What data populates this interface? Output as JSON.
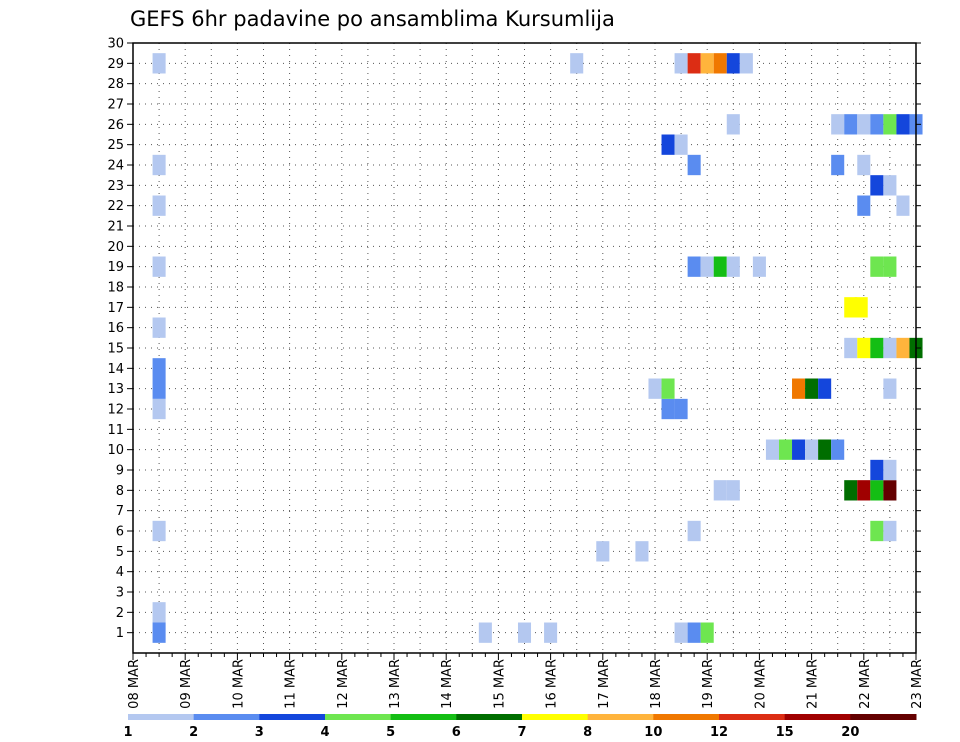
{
  "chart_data": {
    "type": "heatmap",
    "title": "GEFS 6hr padavine po ansamblima Kursumlija",
    "xlabel": "",
    "ylabel": "",
    "x_ticks": [
      "08 MAR",
      "09 MAR",
      "10 MAR",
      "11 MAR",
      "12 MAR",
      "13 MAR",
      "14 MAR",
      "15 MAR",
      "16 MAR",
      "17 MAR",
      "18 MAR",
      "19 MAR",
      "20 MAR",
      "21 MAR",
      "22 MAR",
      "23 MAR"
    ],
    "y_ticks": [
      "1",
      "2",
      "3",
      "4",
      "5",
      "6",
      "7",
      "8",
      "9",
      "10",
      "11",
      "12",
      "13",
      "14",
      "15",
      "16",
      "17",
      "18",
      "19",
      "20",
      "21",
      "22",
      "23",
      "24",
      "25",
      "26",
      "27",
      "28",
      "29",
      "30"
    ],
    "xlim_days": [
      0,
      15
    ],
    "ylim": [
      0,
      30
    ],
    "grid": true,
    "steps_per_day": 4,
    "legend": {
      "placement": "bottom",
      "labels": [
        "1",
        "2",
        "3",
        "4",
        "5",
        "6",
        "7",
        "8",
        "10",
        "12",
        "15",
        "20"
      ],
      "colors": [
        "#b4c8f0",
        "#5a8cf0",
        "#1446dc",
        "#6ee650",
        "#14be14",
        "#006e00",
        "#ffff00",
        "#ffb43c",
        "#f07800",
        "#dc2d14",
        "#a00000",
        "#640000"
      ]
    },
    "cells": [
      {
        "member": 1,
        "day": 0.5,
        "level": 1
      },
      {
        "member": 1,
        "day": 7.5,
        "level": 0
      },
      {
        "member": 1,
        "day": 8,
        "level": 0
      },
      {
        "member": 1,
        "day": 6.75,
        "level": -1
      },
      {
        "member": 1,
        "day": 10.5,
        "level": 0
      },
      {
        "member": 1,
        "day": 10.75,
        "level": 1
      },
      {
        "member": 1,
        "day": 11,
        "level": 3
      },
      {
        "member": 2,
        "day": 0.5,
        "level": 0
      },
      {
        "member": 5,
        "day": 9,
        "level": 0
      },
      {
        "member": 5,
        "day": 9.75,
        "level": 0
      },
      {
        "member": 6,
        "day": 0.5,
        "level": 0
      },
      {
        "member": 6,
        "day": 10.75,
        "level": 0
      },
      {
        "member": 6,
        "day": 14.25,
        "level": 3
      },
      {
        "member": 6,
        "day": 14.5,
        "level": 0
      },
      {
        "member": 8,
        "day": 11.25,
        "level": 0
      },
      {
        "member": 8,
        "day": 11.5,
        "level": 0
      },
      {
        "member": 8,
        "day": 13.75,
        "level": 5
      },
      {
        "member": 8,
        "day": 14,
        "level": 10
      },
      {
        "member": 8,
        "day": 14.25,
        "level": 4
      },
      {
        "member": 8,
        "day": 14.5,
        "level": 11
      },
      {
        "member": 9,
        "day": 14.25,
        "level": 2
      },
      {
        "member": 9,
        "day": 14.5,
        "level": 0
      },
      {
        "member": 10,
        "day": 12.25,
        "level": 0
      },
      {
        "member": 10,
        "day": 12.5,
        "level": 3
      },
      {
        "member": 10,
        "day": 12.75,
        "level": 2
      },
      {
        "member": 10,
        "day": 13,
        "level": 0
      },
      {
        "member": 10,
        "day": 13.25,
        "level": 5
      },
      {
        "member": 10,
        "day": 13.5,
        "level": 1
      },
      {
        "member": 12,
        "day": 0.5,
        "level": 0
      },
      {
        "member": 12,
        "day": 10.25,
        "level": 1
      },
      {
        "member": 12,
        "day": 10.5,
        "level": 1
      },
      {
        "member": 13,
        "day": 0.5,
        "level": 1
      },
      {
        "member": 13,
        "day": 10,
        "level": 0
      },
      {
        "member": 13,
        "day": 10.25,
        "level": 3
      },
      {
        "member": 13,
        "day": 12.75,
        "level": 8
      },
      {
        "member": 13,
        "day": 13,
        "level": 5
      },
      {
        "member": 13,
        "day": 13.25,
        "level": 2
      },
      {
        "member": 13,
        "day": 14.5,
        "level": 0
      },
      {
        "member": 14,
        "day": 0.5,
        "level": 1
      },
      {
        "member": 15,
        "day": 13.75,
        "level": 0
      },
      {
        "member": 15,
        "day": 14,
        "level": 6
      },
      {
        "member": 15,
        "day": 14.25,
        "level": 4
      },
      {
        "member": 15,
        "day": 14.5,
        "level": 0
      },
      {
        "member": 15,
        "day": 14.75,
        "level": 7
      },
      {
        "member": 15,
        "day": 15,
        "level": 5
      },
      {
        "member": 16,
        "day": 0.5,
        "level": 0
      },
      {
        "member": 17,
        "day": 13.75,
        "level": 6
      },
      {
        "member": 17,
        "day": 13.95,
        "level": 6
      },
      {
        "member": 19,
        "day": 0.5,
        "level": 0
      },
      {
        "member": 19,
        "day": 10.75,
        "level": 1
      },
      {
        "member": 19,
        "day": 11,
        "level": 0
      },
      {
        "member": 19,
        "day": 11.25,
        "level": 4
      },
      {
        "member": 19,
        "day": 11.5,
        "level": 0
      },
      {
        "member": 19,
        "day": 12,
        "level": 0
      },
      {
        "member": 19,
        "day": 14.25,
        "level": 3
      },
      {
        "member": 19,
        "day": 14.5,
        "level": 3
      },
      {
        "member": 22,
        "day": 0.5,
        "level": 0
      },
      {
        "member": 22,
        "day": 14,
        "level": 1
      },
      {
        "member": 22,
        "day": 14.75,
        "level": 0
      },
      {
        "member": 23,
        "day": 14.25,
        "level": 2
      },
      {
        "member": 23,
        "day": 14.5,
        "level": 0
      },
      {
        "member": 24,
        "day": 0.5,
        "level": 0
      },
      {
        "member": 24,
        "day": 10.75,
        "level": 1
      },
      {
        "member": 24,
        "day": 13.5,
        "level": 1
      },
      {
        "member": 24,
        "day": 14,
        "level": 0
      },
      {
        "member": 25,
        "day": 10.25,
        "level": 2
      },
      {
        "member": 25,
        "day": 10.5,
        "level": 0
      },
      {
        "member": 26,
        "day": 11.5,
        "level": 0
      },
      {
        "member": 26,
        "day": 13.5,
        "level": 0
      },
      {
        "member": 26,
        "day": 13.75,
        "level": 1
      },
      {
        "member": 26,
        "day": 14,
        "level": 0
      },
      {
        "member": 26,
        "day": 14.25,
        "level": 1
      },
      {
        "member": 26,
        "day": 14.5,
        "level": 3
      },
      {
        "member": 26,
        "day": 14.75,
        "level": 2
      },
      {
        "member": 26,
        "day": 15,
        "level": 1
      },
      {
        "member": 29,
        "day": 0.5,
        "level": 0
      },
      {
        "member": 29,
        "day": 8.5,
        "level": 0
      },
      {
        "member": 29,
        "day": 10.5,
        "level": 0
      },
      {
        "member": 29,
        "day": 10.75,
        "level": 9
      },
      {
        "member": 29,
        "day": 11,
        "level": 7
      },
      {
        "member": 29,
        "day": 11.25,
        "level": 8
      },
      {
        "member": 29,
        "day": 11.5,
        "level": 2
      },
      {
        "member": 29,
        "day": 11.75,
        "level": 0
      }
    ]
  }
}
